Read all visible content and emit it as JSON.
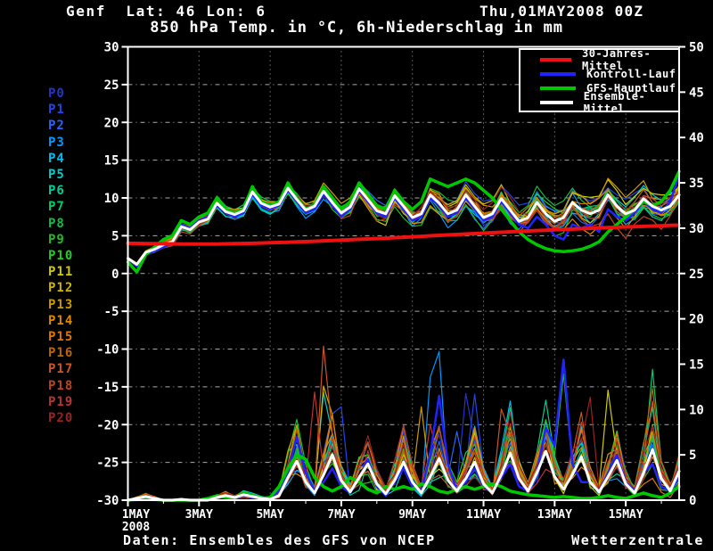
{
  "header": {
    "station": "Genf  Lat: 46 Lon: 6",
    "datetime": "Thu,01MAY2008 00Z"
  },
  "title": "850 hPa Temp. in °C, 6h-Niederschlag in mm",
  "footer": {
    "source": "Daten: Ensembles des GFS von NCEP",
    "brand": "Wetterzentrale"
  },
  "legend": [
    {
      "label": "30-Jahres-Mittel",
      "color": "#ee1111"
    },
    {
      "label": "Kontroll-Lauf",
      "color": "#2222ff"
    },
    {
      "label": "GFS-Hauptlauf",
      "color": "#00c800"
    },
    {
      "label": "Ensemble-Mittel",
      "color": "#ffffff"
    }
  ],
  "member_labels": [
    {
      "label": "P0",
      "color": "#2233cc",
      "seed": 11
    },
    {
      "label": "P1",
      "color": "#2244ee",
      "seed": 23
    },
    {
      "label": "P2",
      "color": "#2266ff",
      "seed": 37
    },
    {
      "label": "P3",
      "color": "#0099ff",
      "seed": 41
    },
    {
      "label": "P4",
      "color": "#00bbee",
      "seed": 53
    },
    {
      "label": "P5",
      "color": "#00cccc",
      "seed": 67
    },
    {
      "label": "P6",
      "color": "#00cc99",
      "seed": 71
    },
    {
      "label": "P7",
      "color": "#00cc66",
      "seed": 83
    },
    {
      "label": "P8",
      "color": "#11bb44",
      "seed": 97
    },
    {
      "label": "P9",
      "color": "#22bb22",
      "seed": 101
    },
    {
      "label": "P10",
      "color": "#22cc22",
      "seed": 113
    },
    {
      "label": "P11",
      "color": "#cccc00",
      "seed": 127
    },
    {
      "label": "P12",
      "color": "#ccb400",
      "seed": 131
    },
    {
      "label": "P13",
      "color": "#cc9900",
      "seed": 139
    },
    {
      "label": "P14",
      "color": "#dd8800",
      "seed": 149
    },
    {
      "label": "P15",
      "color": "#dd7700",
      "seed": 151
    },
    {
      "label": "P16",
      "color": "#bb6600",
      "seed": 163
    },
    {
      "label": "P17",
      "color": "#cc5522",
      "seed": 167
    },
    {
      "label": "P18",
      "color": "#bb4422",
      "seed": 179
    },
    {
      "label": "P19",
      "color": "#bb3333",
      "seed": 181
    },
    {
      "label": "P20",
      "color": "#992222",
      "seed": 193
    }
  ],
  "axes": {
    "left": {
      "ticks": [
        30,
        25,
        20,
        15,
        10,
        5,
        0,
        -5,
        -10,
        -15,
        -20,
        -25,
        -30
      ],
      "range": [
        -30,
        30
      ],
      "unit": "°C"
    },
    "right": {
      "ticks": [
        50,
        45,
        40,
        35,
        30,
        25,
        20,
        15,
        10,
        5,
        0
      ],
      "range": [
        0,
        50
      ],
      "unit": "mm"
    },
    "x": {
      "ticks": [
        {
          "label": "1MAY",
          "day": 0
        },
        {
          "label": "3MAY",
          "day": 2
        },
        {
          "label": "5MAY",
          "day": 4
        },
        {
          "label": "7MAY",
          "day": 6
        },
        {
          "label": "9MAY",
          "day": 8
        },
        {
          "label": "11MAY",
          "day": 10
        },
        {
          "label": "13MAY",
          "day": 12
        },
        {
          "label": "15MAY",
          "day": 14
        }
      ],
      "year": "2008",
      "range_days": [
        0,
        15.5
      ]
    }
  },
  "chart_data": {
    "type": "line",
    "title": "850 hPa Temp. in °C, 6h-Niederschlag in mm",
    "x_unit": "days since 01MAY2008 00Z",
    "x_start": 0,
    "x_step": 0.25,
    "grid": {
      "horizontal_every": 5,
      "vertical_every_days": 2,
      "style": "dotted"
    },
    "series": [
      {
        "name": "30-Jahres-Mittel",
        "axis": "temp",
        "color": "#ee1111",
        "width": 4,
        "z": 7,
        "values": [
          4.0,
          3.98,
          3.96,
          3.95,
          3.93,
          3.92,
          3.9,
          3.9,
          3.9,
          3.9,
          3.9,
          3.92,
          3.95,
          3.97,
          4.0,
          4.03,
          4.06,
          4.1,
          4.14,
          4.18,
          4.22,
          4.27,
          4.32,
          4.37,
          4.42,
          4.47,
          4.52,
          4.57,
          4.62,
          4.68,
          4.74,
          4.8,
          4.86,
          4.92,
          4.98,
          5.04,
          5.1,
          5.16,
          5.22,
          5.28,
          5.34,
          5.4,
          5.46,
          5.52,
          5.58,
          5.63,
          5.68,
          5.73,
          5.78,
          5.83,
          5.88,
          5.93,
          5.98,
          6.03,
          6.08,
          6.12,
          6.16,
          6.2,
          6.24,
          6.28,
          6.32,
          6.36,
          6.4
        ]
      },
      {
        "name": "Kontroll-Lauf (Temp)",
        "axis": "temp",
        "color": "#2222ff",
        "width": 2.5,
        "z": 4,
        "values": [
          2.0,
          1.0,
          2.5,
          3.0,
          3.5,
          4.0,
          6.5,
          6.0,
          7.0,
          7.5,
          9.0,
          8.0,
          7.5,
          8.0,
          10.5,
          9.0,
          8.5,
          9.0,
          11.0,
          9.5,
          8.0,
          8.5,
          10.5,
          9.0,
          7.5,
          8.5,
          11.0,
          9.5,
          8.0,
          7.5,
          10.0,
          8.5,
          7.0,
          7.5,
          10.0,
          9.0,
          7.5,
          8.0,
          10.0,
          8.5,
          7.0,
          7.5,
          9.5,
          8.0,
          6.5,
          6.0,
          7.5,
          6.5,
          5.0,
          4.5,
          6.5,
          6.0,
          6.5,
          5.5,
          8.5,
          7.5,
          7.0,
          8.0,
          9.5,
          8.5,
          8.0,
          9.5,
          13.0
        ]
      },
      {
        "name": "GFS-Hauptlauf (Temp)",
        "axis": "temp",
        "color": "#00c800",
        "width": 3.5,
        "z": 5,
        "values": [
          1.5,
          0.2,
          2.5,
          3.5,
          4.5,
          5.0,
          7.0,
          6.5,
          7.5,
          8.0,
          10.0,
          8.5,
          8.0,
          8.5,
          11.5,
          9.5,
          9.0,
          9.5,
          12.0,
          10.0,
          8.5,
          9.0,
          11.5,
          10.0,
          8.5,
          9.5,
          12.0,
          10.5,
          9.0,
          8.5,
          11.0,
          9.5,
          8.5,
          9.5,
          12.5,
          12.0,
          11.5,
          12.0,
          12.5,
          12.0,
          11.0,
          10.0,
          8.5,
          7.0,
          5.5,
          4.5,
          3.8,
          3.3,
          3.0,
          2.9,
          3.0,
          3.2,
          3.6,
          4.2,
          5.5,
          6.5,
          7.5,
          8.5,
          9.5,
          9.0,
          9.5,
          11.0,
          13.5
        ]
      },
      {
        "name": "Ensemble-Mittel (Temp)",
        "axis": "temp",
        "color": "#ffffff",
        "width": 3,
        "z": 6,
        "values": [
          2.0,
          1.2,
          2.8,
          3.2,
          3.8,
          4.2,
          6.2,
          5.8,
          6.8,
          7.2,
          9.3,
          8.2,
          7.8,
          8.3,
          10.8,
          9.3,
          8.8,
          9.2,
          11.3,
          9.8,
          8.4,
          8.9,
          10.9,
          9.4,
          8.0,
          8.8,
          11.2,
          9.8,
          8.3,
          7.9,
          10.3,
          8.9,
          7.4,
          7.9,
          10.4,
          9.3,
          7.9,
          8.4,
          10.4,
          8.9,
          7.4,
          7.9,
          9.9,
          8.4,
          6.9,
          7.4,
          9.4,
          7.9,
          6.9,
          7.4,
          9.4,
          8.4,
          7.9,
          8.4,
          10.4,
          8.9,
          7.9,
          8.4,
          9.9,
          8.9,
          8.4,
          8.9,
          10.4
        ]
      },
      {
        "name": "Kontroll-Lauf (Niederschlag)",
        "axis": "precip",
        "color": "#2222ff",
        "width": 2.5,
        "z": 4,
        "values": [
          0,
          0,
          0.2,
          0,
          0,
          0,
          0,
          0,
          0,
          0,
          0.4,
          0.3,
          0.2,
          0.5,
          0.3,
          0.1,
          0.2,
          1.0,
          3.0,
          7.0,
          3.0,
          1.0,
          2.0,
          3.5,
          1.5,
          0.8,
          2.5,
          4.5,
          1.5,
          0.5,
          2.0,
          3.5,
          1.5,
          1.0,
          5.0,
          11.5,
          4.0,
          1.0,
          2.0,
          3.5,
          1.5,
          0.8,
          2.5,
          4.0,
          1.5,
          1.0,
          3.0,
          8.0,
          6.0,
          15.5,
          4.0,
          2.0,
          2.0,
          1.0,
          3.0,
          5.0,
          2.0,
          1.0,
          3.0,
          4.0,
          1.5,
          1.0,
          2.5
        ]
      },
      {
        "name": "GFS-Hauptlauf (Niederschlag)",
        "axis": "precip",
        "color": "#00c800",
        "width": 3.5,
        "z": 5,
        "values": [
          0,
          0.1,
          0.3,
          0.1,
          0,
          0,
          0,
          0,
          0,
          0.2,
          0.5,
          0.3,
          0.2,
          0.8,
          0.5,
          0.2,
          0.3,
          1.5,
          3.5,
          5.0,
          4.5,
          2.5,
          1.5,
          1.0,
          1.5,
          2.5,
          2.0,
          1.2,
          0.8,
          1.5,
          1.2,
          1.5,
          1.2,
          1.8,
          1.5,
          1.0,
          0.8,
          1.2,
          1.5,
          1.2,
          1.5,
          1.8,
          1.5,
          1.0,
          0.8,
          0.6,
          0.5,
          0.4,
          0.3,
          0.4,
          0.3,
          0.2,
          0.2,
          0.3,
          0.5,
          0.3,
          0.2,
          0.5,
          0.8,
          0.5,
          0.3,
          0.8,
          1.5
        ]
      },
      {
        "name": "Ensemble-Mittel (Niederschlag)",
        "axis": "precip",
        "color": "#ffffff",
        "width": 3,
        "z": 6,
        "values": [
          0,
          0.2,
          0.4,
          0.2,
          0,
          0,
          0.1,
          0,
          0,
          0,
          0.3,
          0.5,
          0.3,
          0.6,
          0.4,
          0.2,
          0.1,
          0.5,
          2.5,
          4.3,
          2.0,
          0.8,
          2.8,
          5.0,
          2.2,
          0.9,
          2.5,
          4.0,
          1.8,
          0.7,
          2.2,
          4.2,
          2.0,
          0.8,
          2.6,
          4.6,
          2.2,
          1.0,
          2.4,
          4.2,
          1.8,
          0.8,
          2.8,
          5.2,
          2.4,
          1.0,
          3.0,
          5.4,
          2.6,
          1.2,
          2.8,
          4.8,
          2.0,
          0.9,
          2.6,
          4.4,
          1.8,
          0.8,
          3.0,
          5.6,
          2.4,
          1.0,
          3.2
        ]
      }
    ],
    "ensemble_members": {
      "count": 21,
      "note": "21 GFS ensemble members P0-P20 as thin spaghetti curves around the ensemble mean (temperature top, 6h precipitation bottom); spread grows with lead time",
      "temp_spread_start": 0.35,
      "temp_spread_end": 3.5,
      "precip_peak_max_mm": 15.5
    }
  },
  "colors": {
    "background": "#000000",
    "foreground": "#ffffff",
    "grid": "#aaaaaa"
  }
}
